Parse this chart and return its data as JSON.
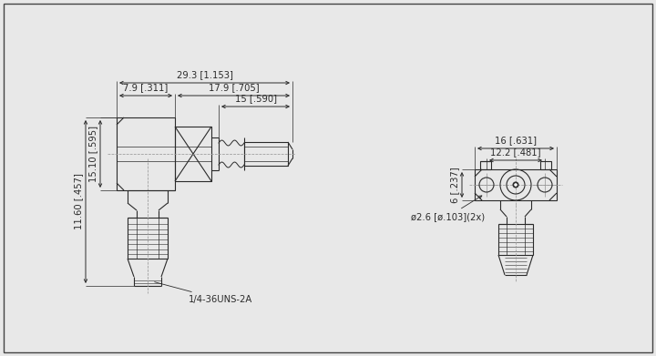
{
  "bg_color": "#e8e8e8",
  "line_color": "#2a2a2a",
  "dim_color": "#2a2a2a",
  "centerline_color": "#999999",
  "dims_left": {
    "width_total": "29.3 [1.153]",
    "width_left": "7.9 [.311]",
    "width_right": "17.9 [.705]",
    "width_inner": "15 [.590]",
    "height_outer": "15.10 [.595]",
    "height_inner": "11.60 [.457]",
    "thread": "1/4-36UNS-2A"
  },
  "dims_right": {
    "width_outer": "16 [.631]",
    "width_inner": "12.2 [.481]",
    "height": "6 [.237]",
    "hole": "ø2.6 [ø.103](2x)"
  }
}
